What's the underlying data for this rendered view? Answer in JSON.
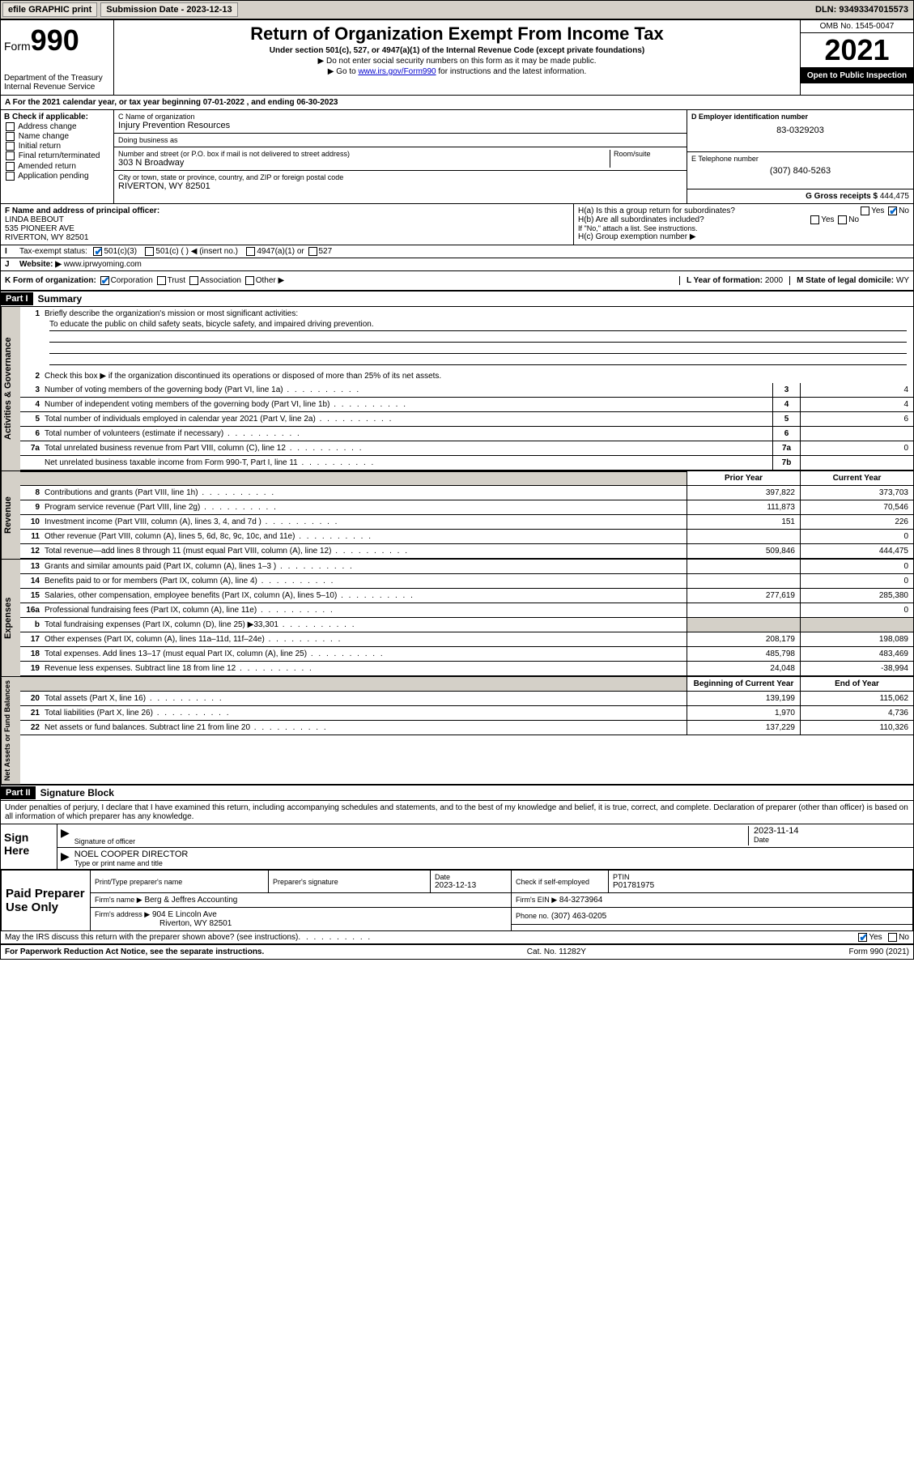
{
  "topbar": {
    "efile": "efile GRAPHIC print",
    "submission_label": "Submission Date - 2023-12-13",
    "dln": "DLN: 93493347015573"
  },
  "header": {
    "form_word": "Form",
    "form_number": "990",
    "dept": "Department of the Treasury Internal Revenue Service",
    "title": "Return of Organization Exempt From Income Tax",
    "subtitle": "Under section 501(c), 527, or 4947(a)(1) of the Internal Revenue Code (except private foundations)",
    "note1": "▶ Do not enter social security numbers on this form as it may be made public.",
    "note2_pre": "▶ Go to ",
    "note2_link": "www.irs.gov/Form990",
    "note2_post": " for instructions and the latest information.",
    "omb": "OMB No. 1545-0047",
    "year": "2021",
    "open": "Open to Public Inspection"
  },
  "line_a": "For the 2021 calendar year, or tax year beginning 07-01-2022   , and ending 06-30-2023",
  "b": {
    "label": "B Check if applicable:",
    "opts": [
      "Address change",
      "Name change",
      "Initial return",
      "Final return/terminated",
      "Amended return",
      "Application pending"
    ]
  },
  "c": {
    "name_label": "C Name of organization",
    "name": "Injury Prevention Resources",
    "dba_label": "Doing business as",
    "dba": "",
    "addr_label": "Number and street (or P.O. box if mail is not delivered to street address)",
    "room_label": "Room/suite",
    "addr": "303 N Broadway",
    "city_label": "City or town, state or province, country, and ZIP or foreign postal code",
    "city": "RIVERTON, WY  82501"
  },
  "d": {
    "label": "D Employer identification number",
    "val": "83-0329203"
  },
  "e": {
    "label": "E Telephone number",
    "val": "(307) 840-5263"
  },
  "g": {
    "label": "G Gross receipts $",
    "val": "444,475"
  },
  "f": {
    "label": "F  Name and address of principal officer:",
    "name": "LINDA BEBOUT",
    "addr1": "535 PIONEER AVE",
    "addr2": "RIVERTON, WY  82501"
  },
  "h": {
    "a": "H(a)  Is this a group return for subordinates?",
    "a_yes": "Yes",
    "a_no": "No",
    "b": "H(b)  Are all subordinates included?",
    "b_note": "If \"No,\" attach a list. See instructions.",
    "c": "H(c)  Group exemption number ▶"
  },
  "i": {
    "label": "Tax-exempt status:",
    "opt1": "501(c)(3)",
    "opt2": "501(c) (  ) ◀ (insert no.)",
    "opt3": "4947(a)(1) or",
    "opt4": "527"
  },
  "j": {
    "label": "Website: ▶",
    "val": "www.iprwyoming.com"
  },
  "k": {
    "label": "K Form of organization:",
    "opts": [
      "Corporation",
      "Trust",
      "Association",
      "Other ▶"
    ]
  },
  "l": {
    "label": "L Year of formation:",
    "val": "2000"
  },
  "m": {
    "label": "M State of legal domicile:",
    "val": "WY"
  },
  "part1": {
    "header": "Part I",
    "title": "Summary",
    "q1_label": "1",
    "q1": "Briefly describe the organization's mission or most significant activities:",
    "q1_text": "To educate the public on child safety seats, bicycle safety, and impaired driving prevention.",
    "q2_label": "2",
    "q2": "Check this box ▶      if the organization discontinued its operations or disposed of more than 25% of its net assets.",
    "lines_gov": [
      {
        "n": "3",
        "t": "Number of voting members of the governing body (Part VI, line 1a)",
        "box": "3",
        "v": "4"
      },
      {
        "n": "4",
        "t": "Number of independent voting members of the governing body (Part VI, line 1b)",
        "box": "4",
        "v": "4"
      },
      {
        "n": "5",
        "t": "Total number of individuals employed in calendar year 2021 (Part V, line 2a)",
        "box": "5",
        "v": "6"
      },
      {
        "n": "6",
        "t": "Total number of volunteers (estimate if necessary)",
        "box": "6",
        "v": ""
      },
      {
        "n": "7a",
        "t": "Total unrelated business revenue from Part VIII, column (C), line 12",
        "box": "7a",
        "v": "0"
      },
      {
        "n": "",
        "t": "Net unrelated business taxable income from Form 990-T, Part I, line 11",
        "box": "7b",
        "v": ""
      }
    ],
    "col_prior": "Prior Year",
    "col_current": "Current Year",
    "lines_rev": [
      {
        "n": "8",
        "t": "Contributions and grants (Part VIII, line 1h)",
        "p": "397,822",
        "c": "373,703"
      },
      {
        "n": "9",
        "t": "Program service revenue (Part VIII, line 2g)",
        "p": "111,873",
        "c": "70,546"
      },
      {
        "n": "10",
        "t": "Investment income (Part VIII, column (A), lines 3, 4, and 7d )",
        "p": "151",
        "c": "226"
      },
      {
        "n": "11",
        "t": "Other revenue (Part VIII, column (A), lines 5, 6d, 8c, 9c, 10c, and 11e)",
        "p": "",
        "c": "0"
      },
      {
        "n": "12",
        "t": "Total revenue—add lines 8 through 11 (must equal Part VIII, column (A), line 12)",
        "p": "509,846",
        "c": "444,475"
      }
    ],
    "lines_exp": [
      {
        "n": "13",
        "t": "Grants and similar amounts paid (Part IX, column (A), lines 1–3 )",
        "p": "",
        "c": "0"
      },
      {
        "n": "14",
        "t": "Benefits paid to or for members (Part IX, column (A), line 4)",
        "p": "",
        "c": "0"
      },
      {
        "n": "15",
        "t": "Salaries, other compensation, employee benefits (Part IX, column (A), lines 5–10)",
        "p": "277,619",
        "c": "285,380"
      },
      {
        "n": "16a",
        "t": "Professional fundraising fees (Part IX, column (A), line 11e)",
        "p": "",
        "c": "0"
      },
      {
        "n": "b",
        "t": "Total fundraising expenses (Part IX, column (D), line 25) ▶33,301",
        "p": "GREY",
        "c": "GREY"
      },
      {
        "n": "17",
        "t": "Other expenses (Part IX, column (A), lines 11a–11d, 11f–24e)",
        "p": "208,179",
        "c": "198,089"
      },
      {
        "n": "18",
        "t": "Total expenses. Add lines 13–17 (must equal Part IX, column (A), line 25)",
        "p": "485,798",
        "c": "483,469"
      },
      {
        "n": "19",
        "t": "Revenue less expenses. Subtract line 18 from line 12",
        "p": "24,048",
        "c": "-38,994"
      }
    ],
    "col_begin": "Beginning of Current Year",
    "col_end": "End of Year",
    "lines_net": [
      {
        "n": "20",
        "t": "Total assets (Part X, line 16)",
        "p": "139,199",
        "c": "115,062"
      },
      {
        "n": "21",
        "t": "Total liabilities (Part X, line 26)",
        "p": "1,970",
        "c": "4,736"
      },
      {
        "n": "22",
        "t": "Net assets or fund balances. Subtract line 21 from line 20",
        "p": "137,229",
        "c": "110,326"
      }
    ]
  },
  "part2": {
    "header": "Part II",
    "title": "Signature Block",
    "decl": "Under penalties of perjury, I declare that I have examined this return, including accompanying schedules and statements, and to the best of my knowledge and belief, it is true, correct, and complete. Declaration of preparer (other than officer) is based on all information of which preparer has any knowledge.",
    "sign_here": "Sign Here",
    "sig_officer": "Signature of officer",
    "sig_date": "2023-11-14",
    "date_lbl": "Date",
    "officer_name": "NOEL COOPER  DIRECTOR",
    "officer_title_lbl": "Type or print name and title",
    "paid": "Paid Preparer Use Only",
    "prep_name_lbl": "Print/Type preparer's name",
    "prep_sig_lbl": "Preparer's signature",
    "prep_date_lbl": "Date",
    "prep_date": "2023-12-13",
    "self_emp": "Check       if self-employed",
    "ptin_lbl": "PTIN",
    "ptin": "P01781975",
    "firm_name_lbl": "Firm's name    ▶",
    "firm_name": "Berg & Jeffres Accounting",
    "firm_ein_lbl": "Firm's EIN ▶",
    "firm_ein": "84-3273964",
    "firm_addr_lbl": "Firm's address ▶",
    "firm_addr1": "904 E Lincoln Ave",
    "firm_addr2": "Riverton, WY  82501",
    "phone_lbl": "Phone no.",
    "phone": "(307) 463-0205",
    "discuss": "May the IRS discuss this return with the preparer shown above? (see instructions)",
    "yes": "Yes",
    "no": "No"
  },
  "footer": {
    "left": "For Paperwork Reduction Act Notice, see the separate instructions.",
    "mid": "Cat. No. 11282Y",
    "right": "Form 990 (2021)"
  },
  "colors": {
    "bg_grey": "#d4d0c8",
    "link": "#0000cc",
    "check": "#0066cc"
  }
}
